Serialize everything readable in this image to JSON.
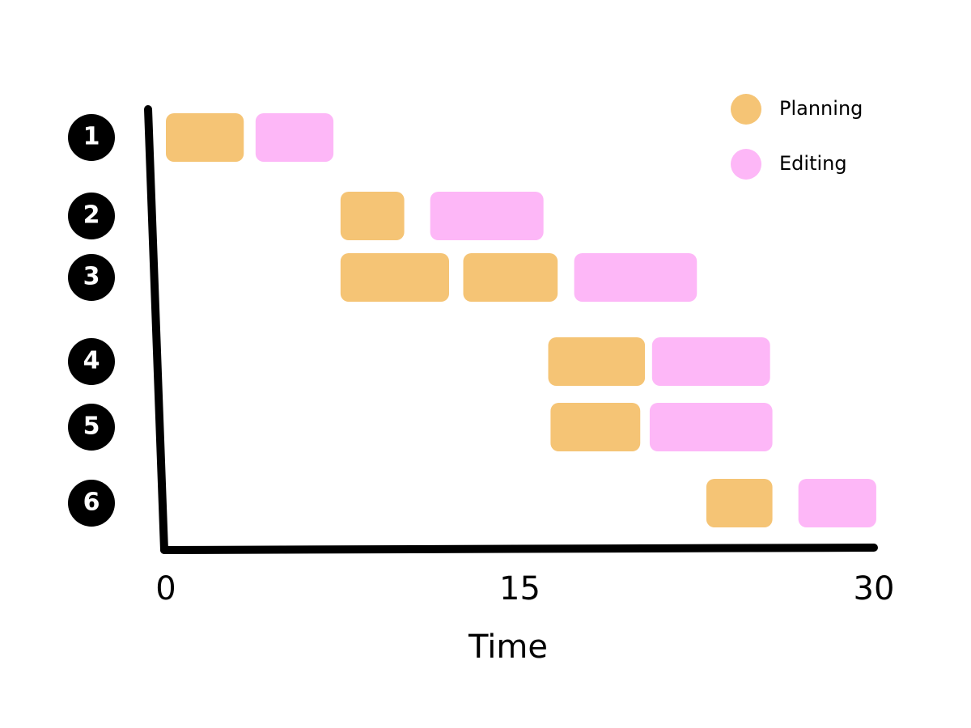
{
  "chart_data": {
    "type": "gantt",
    "x_label": "Time",
    "categories": [
      "1",
      "2",
      "3",
      "4",
      "5",
      "6"
    ],
    "xlim": [
      0,
      30
    ],
    "xticks": [
      0,
      15,
      30
    ],
    "series": [
      {
        "name": "Planning",
        "color": "#f5c475",
        "values": [
          [
            [
              0,
              3.3
            ]
          ],
          [
            [
              7.4,
              10.1
            ]
          ],
          [
            [
              7.4,
              12
            ],
            [
              12.6,
              16.6
            ]
          ],
          [
            [
              16.2,
              20.3
            ]
          ],
          [
            [
              16.3,
              20.1
            ]
          ],
          [
            [
              22.9,
              25.7
            ]
          ]
        ]
      },
      {
        "name": "Editing",
        "color": "#fdb7f7",
        "values": [
          [
            [
              3.8,
              7.1
            ]
          ],
          [
            [
              11.2,
              16
            ]
          ],
          [
            [
              17.3,
              22.5
            ]
          ],
          [
            [
              20.6,
              25.6
            ]
          ],
          [
            [
              20.5,
              25.7
            ]
          ],
          [
            [
              26.8,
              30.1
            ]
          ]
        ]
      }
    ]
  }
}
